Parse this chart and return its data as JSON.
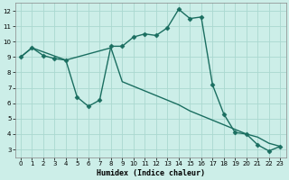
{
  "xlabel": "Humidex (Indice chaleur)",
  "bg_color": "#cceee8",
  "grid_color": "#aad8d0",
  "line_color": "#1a6e60",
  "marker": "D",
  "markersize": 2.5,
  "linewidth": 1.0,
  "xlim": [
    -0.5,
    23.5
  ],
  "ylim": [
    2.5,
    12.5
  ],
  "xticks": [
    0,
    1,
    2,
    3,
    4,
    5,
    6,
    7,
    8,
    9,
    10,
    11,
    12,
    13,
    14,
    15,
    16,
    17,
    18,
    19,
    20,
    21,
    22,
    23
  ],
  "yticks": [
    3,
    4,
    5,
    6,
    7,
    8,
    9,
    10,
    11,
    12
  ],
  "curve1_x": [
    0,
    1,
    2,
    3,
    4,
    5,
    6,
    7,
    8,
    9,
    10,
    11,
    12,
    13,
    14,
    15,
    16,
    17,
    18,
    19,
    20,
    21,
    22,
    23
  ],
  "curve1_y": [
    9.0,
    9.6,
    9.1,
    8.9,
    8.8,
    6.4,
    5.8,
    6.2,
    9.7,
    9.7,
    10.3,
    10.5,
    10.4,
    10.9,
    12.1,
    11.5,
    11.6,
    7.2,
    5.3,
    4.1,
    4.0,
    3.3,
    2.9,
    3.2
  ],
  "curve2_x": [
    0,
    1,
    4,
    8,
    9,
    10,
    11,
    12,
    13,
    14,
    15,
    16,
    17,
    18,
    19,
    20,
    21,
    22,
    23
  ],
  "curve2_y": [
    9.0,
    9.6,
    8.8,
    9.6,
    7.4,
    7.1,
    6.8,
    6.5,
    6.2,
    5.9,
    5.5,
    5.2,
    4.9,
    4.6,
    4.3,
    4.0,
    3.8,
    3.4,
    3.2
  ],
  "xlabel_fontsize": 6,
  "tick_fontsize": 5
}
